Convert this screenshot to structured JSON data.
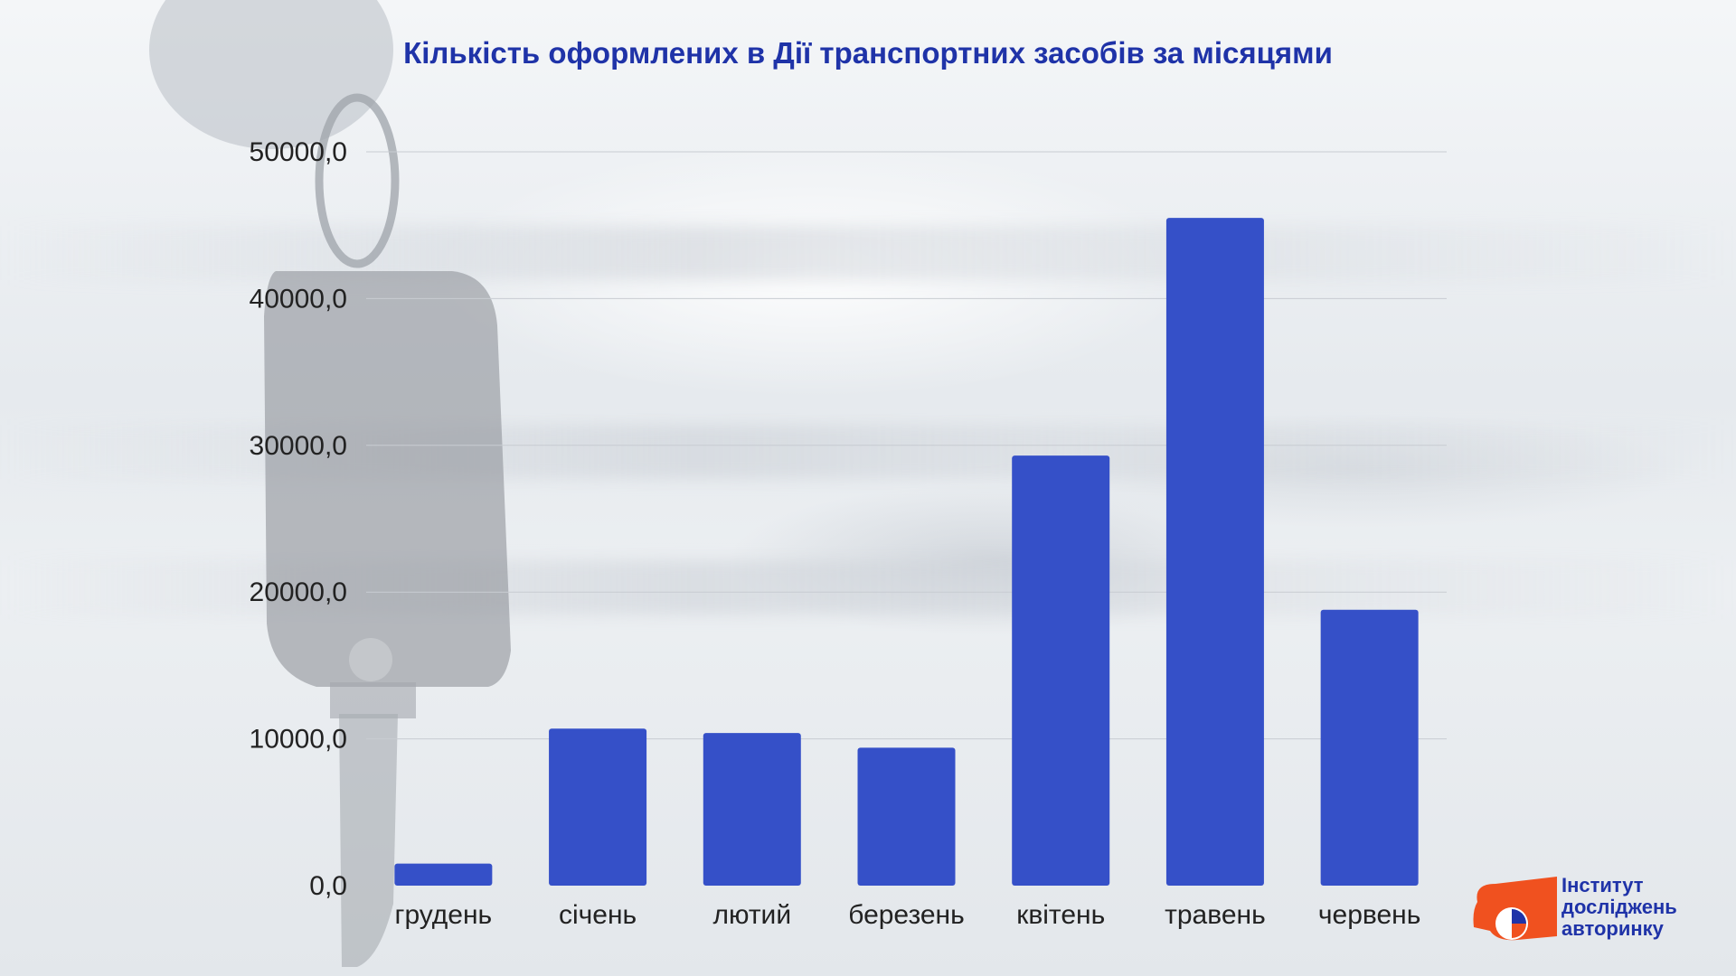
{
  "chart_data": {
    "type": "bar",
    "title": "Кількість оформлених в Дії транспортних засобів за місяцями",
    "categories": [
      "грудень",
      "січень",
      "лютий",
      "березень",
      "квітень",
      "травень",
      "червень"
    ],
    "values": [
      1500,
      10700,
      10400,
      9400,
      29300,
      45500,
      18800
    ],
    "ylim": [
      0,
      50000
    ],
    "yticks": [
      "0,0",
      "10000,0",
      "20000,0",
      "30000,0",
      "40000,0",
      "50000,0"
    ],
    "grid": true,
    "bar_color": "#3550c8"
  },
  "logo": {
    "line1": "Інститут",
    "line2": "досліджень",
    "line3": "авторинку",
    "text_color": "#1f33a8",
    "mark_color": "#f0511f"
  }
}
